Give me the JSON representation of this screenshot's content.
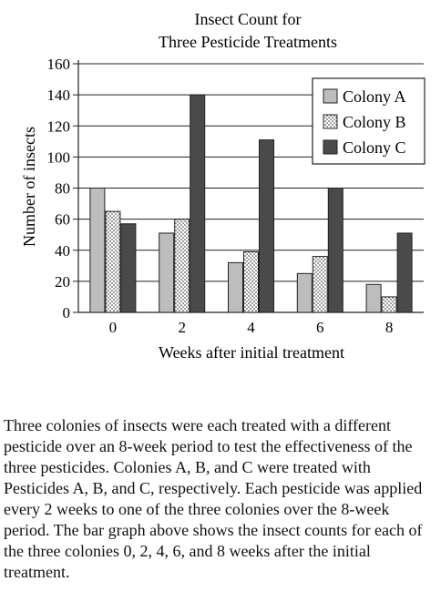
{
  "chart_data": {
    "type": "bar",
    "title_lines": [
      "Insect Count for",
      "Three Pesticide Treatments"
    ],
    "xlabel": "Weeks after initial treatment",
    "ylabel": "Number of insects",
    "categories": [
      "0",
      "2",
      "4",
      "6",
      "8"
    ],
    "ylim": [
      0,
      160
    ],
    "yticks": [
      0,
      20,
      40,
      60,
      80,
      100,
      120,
      140,
      160
    ],
    "grid": true,
    "legend_position": "top-right",
    "series": [
      {
        "name": "Colony A",
        "values": [
          80,
          51,
          32,
          25,
          18
        ],
        "color": "#bdbdbd",
        "pattern": "solid-light"
      },
      {
        "name": "Colony B",
        "values": [
          65,
          60,
          39,
          36,
          10
        ],
        "color": "#ffffff",
        "pattern": "dotted"
      },
      {
        "name": "Colony C",
        "values": [
          57,
          140,
          111,
          80,
          51
        ],
        "color": "#4a4a4a",
        "pattern": "solid-dark"
      }
    ]
  },
  "paragraph": "Three colonies of insects were each treated with a different pesticide over an 8-week period to test the effectiveness of the three pesticides. Colonies A, B, and C were treated with Pesticides A, B, and C, respectively. Each pesticide was applied every 2 weeks to one of the three colonies over the 8-week period. The bar graph above shows the insect counts for each of the three colonies 0, 2, 4, 6, and 8 weeks after the initial treatment."
}
